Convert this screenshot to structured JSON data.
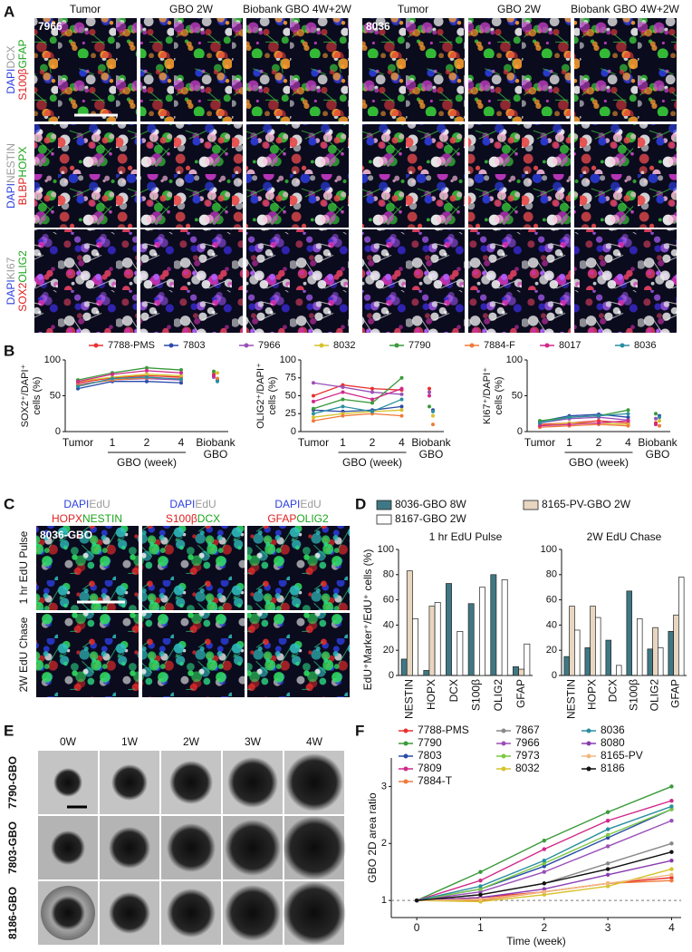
{
  "panels": {
    "A": {
      "label": "A",
      "columns": [
        "Tumor",
        "GBO 2W",
        "Biobank GBO 4W+2W",
        "Tumor",
        "GBO 2W",
        "Biobank GBO 4W+2W"
      ],
      "samples": [
        "7966",
        "8036"
      ],
      "rows": [
        {
          "line1": [
            "DAPI",
            "DCX"
          ],
          "line2": [
            "S100β",
            "GFAP"
          ]
        },
        {
          "line1": [
            "DAPI",
            "NESTIN"
          ],
          "line2": [
            "BLBP",
            "HOPX"
          ]
        },
        {
          "line1": [
            "DAPI",
            "KI67"
          ],
          "line2": [
            "SOX2",
            "OLIG2"
          ]
        }
      ]
    },
    "B": {
      "label": "B"
    },
    "C": {
      "label": "C",
      "columns": [
        {
          "line1": [
            "DAPI",
            "EdU"
          ],
          "line2": [
            "HOPX",
            "NESTIN"
          ]
        },
        {
          "line1": [
            "DAPI",
            "EdU"
          ],
          "line2": [
            "S100β",
            "DCX"
          ]
        },
        {
          "line1": [
            "DAPI",
            "EdU"
          ],
          "line2": [
            "GFAP",
            "OLIG2"
          ]
        }
      ],
      "sample": "8036-GBO",
      "rows": [
        "1 hr EdU Pulse",
        "2W EdU Chase"
      ]
    },
    "D": {
      "label": "D"
    },
    "E": {
      "label": "E",
      "columns": [
        "0W",
        "1W",
        "2W",
        "3W",
        "4W"
      ],
      "rows": [
        "7790-GBO",
        "7803-GBO",
        "8186-GBO"
      ]
    },
    "F": {
      "label": "F"
    }
  },
  "chart_data": [
    {
      "type": "line",
      "ylabel": [
        "SOX2⁺/DAPI⁺",
        "cells (%)"
      ],
      "xlabel": "GBO (week)",
      "categories": [
        "Tumor",
        "1",
        "2",
        "4",
        "Biobank GBO"
      ],
      "ylim": [
        0,
        100
      ],
      "yticks": [
        0,
        50,
        100
      ],
      "series": [
        {
          "name": "7788-PMS",
          "color": "#e8312f",
          "values": [
            68,
            75,
            78,
            76,
            80
          ]
        },
        {
          "name": "7803",
          "color": "#2b4ba8",
          "values": [
            60,
            70,
            70,
            68,
            72
          ]
        },
        {
          "name": "7966",
          "color": "#9b4fb8",
          "values": [
            66,
            72,
            74,
            72,
            76
          ]
        },
        {
          "name": "8032",
          "color": "#d6c22b",
          "values": [
            70,
            76,
            80,
            78,
            82
          ]
        },
        {
          "name": "7790",
          "color": "#3a9a3a",
          "values": [
            72,
            82,
            89,
            86,
            84
          ]
        },
        {
          "name": "7884-F",
          "color": "#f07a3a",
          "values": [
            65,
            72,
            75,
            74,
            74
          ]
        },
        {
          "name": "8017",
          "color": "#d0298a",
          "values": [
            70,
            80,
            85,
            82,
            78
          ]
        },
        {
          "name": "8036",
          "color": "#2a8fa0",
          "values": [
            63,
            74,
            76,
            73,
            70
          ]
        }
      ]
    },
    {
      "type": "line",
      "ylabel": [
        "OLIG2⁺/DAPI⁺",
        "cells (%)"
      ],
      "xlabel": "GBO (week)",
      "categories": [
        "Tumor",
        "1",
        "2",
        "4",
        "Biobank GBO"
      ],
      "ylim": [
        0,
        100
      ],
      "yticks": [
        0,
        25,
        50,
        75,
        100
      ],
      "series": [
        {
          "name": "7788-PMS",
          "color": "#e8312f",
          "values": [
            50,
            65,
            60,
            58,
            60
          ]
        },
        {
          "name": "7803",
          "color": "#2b4ba8",
          "values": [
            30,
            28,
            30,
            35,
            30
          ]
        },
        {
          "name": "7966",
          "color": "#9b4fb8",
          "values": [
            68,
            62,
            55,
            52,
            55
          ]
        },
        {
          "name": "8032",
          "color": "#d6c22b",
          "values": [
            20,
            25,
            28,
            30,
            22
          ]
        },
        {
          "name": "7790",
          "color": "#3a9a3a",
          "values": [
            32,
            45,
            40,
            75,
            35
          ]
        },
        {
          "name": "7884-F",
          "color": "#f07a3a",
          "values": [
            15,
            22,
            25,
            22,
            10
          ]
        },
        {
          "name": "8017",
          "color": "#d0298a",
          "values": [
            42,
            55,
            45,
            60,
            50
          ]
        },
        {
          "name": "8036",
          "color": "#2a8fa0",
          "values": [
            25,
            35,
            28,
            45,
            28
          ]
        }
      ]
    },
    {
      "type": "line",
      "ylabel": [
        "KI67⁺/DAPI⁺",
        "cells (%)"
      ],
      "xlabel": "GBO (week)",
      "categories": [
        "Tumor",
        "1",
        "2",
        "4",
        "Biobank GBO"
      ],
      "ylim": [
        0,
        100
      ],
      "yticks": [
        0,
        50,
        100
      ],
      "series": [
        {
          "name": "7788-PMS",
          "color": "#e8312f",
          "values": [
            10,
            12,
            15,
            12,
            12
          ]
        },
        {
          "name": "7803",
          "color": "#2b4ba8",
          "values": [
            14,
            22,
            24,
            20,
            22
          ]
        },
        {
          "name": "7966",
          "color": "#9b4fb8",
          "values": [
            12,
            18,
            20,
            16,
            18
          ]
        },
        {
          "name": "8032",
          "color": "#d6c22b",
          "values": [
            8,
            12,
            12,
            10,
            15
          ]
        },
        {
          "name": "7790",
          "color": "#3a9a3a",
          "values": [
            15,
            20,
            22,
            30,
            25
          ]
        },
        {
          "name": "7884-F",
          "color": "#f07a3a",
          "values": [
            6,
            8,
            10,
            8,
            8
          ]
        },
        {
          "name": "8017",
          "color": "#d0298a",
          "values": [
            8,
            10,
            12,
            15,
            10
          ]
        },
        {
          "name": "8036",
          "color": "#2a8fa0",
          "values": [
            12,
            20,
            22,
            25,
            20
          ]
        }
      ]
    },
    {
      "type": "bar",
      "title": "1 hr EdU Pulse",
      "ylabel": "EdU⁺Marker⁺/EdU⁺ cells (%)",
      "categories": [
        "NESTIN",
        "HOPX",
        "DCX",
        "S100β",
        "OLIG2",
        "GFAP"
      ],
      "ylim": [
        0,
        100
      ],
      "yticks": [
        0,
        20,
        40,
        60,
        80,
        100
      ],
      "series": [
        {
          "name": "8036-GBO 8W",
          "color": "#3f7884",
          "values": [
            13,
            4,
            73,
            57,
            80,
            7
          ]
        },
        {
          "name": "8165-PV-GBO 2W",
          "color": "#e8d6c0",
          "values": [
            83,
            55,
            null,
            null,
            null,
            5
          ]
        },
        {
          "name": "8167-GBO 2W",
          "color": "#ffffff",
          "values": [
            45,
            58,
            35,
            70,
            76,
            25
          ]
        }
      ]
    },
    {
      "type": "bar",
      "title": "2W EdU Chase",
      "categories": [
        "NESTIN",
        "HOPX",
        "DCX",
        "S100β",
        "OLIG2",
        "GFAP"
      ],
      "ylim": [
        0,
        100
      ],
      "yticks": [
        0,
        20,
        40,
        60,
        80,
        100
      ],
      "series": [
        {
          "name": "8036-GBO 8W",
          "color": "#3f7884",
          "values": [
            15,
            22,
            28,
            67,
            21,
            35
          ]
        },
        {
          "name": "8165-PV-GBO 2W",
          "color": "#e8d6c0",
          "values": [
            55,
            55,
            null,
            null,
            38,
            48
          ]
        },
        {
          "name": "8167-GBO 2W",
          "color": "#ffffff",
          "values": [
            36,
            46,
            8,
            45,
            22,
            78
          ]
        }
      ]
    },
    {
      "type": "xyline",
      "ylabel": "GBO 2D area ratio",
      "xlabel": "Time (week)",
      "x": [
        0,
        1,
        2,
        3,
        4
      ],
      "xlim": [
        -0.4,
        4.15
      ],
      "xticks": [
        0,
        1,
        2,
        3,
        4
      ],
      "ylim": [
        0.7,
        3.5
      ],
      "yticks": [
        1,
        2,
        3
      ],
      "hline": 1,
      "series": [
        {
          "name": "7788-PMS",
          "color": "#e8312f",
          "values": [
            1,
            1.05,
            1.15,
            1.3,
            1.4
          ]
        },
        {
          "name": "7790",
          "color": "#3a9a3a",
          "values": [
            1,
            1.5,
            2.05,
            2.55,
            3.0
          ]
        },
        {
          "name": "7803",
          "color": "#2b4ba8",
          "values": [
            1,
            1.2,
            1.6,
            2.1,
            2.6
          ]
        },
        {
          "name": "7809",
          "color": "#d0298a",
          "values": [
            1,
            1.35,
            1.9,
            2.4,
            2.75
          ]
        },
        {
          "name": "7884-T",
          "color": "#f07a3a",
          "values": [
            1,
            1.0,
            1.15,
            1.3,
            1.35
          ]
        },
        {
          "name": "7867",
          "color": "#888888",
          "values": [
            1,
            1.1,
            1.3,
            1.65,
            2.0
          ]
        },
        {
          "name": "7966",
          "color": "#9b4fb8",
          "values": [
            1,
            1.15,
            1.5,
            1.95,
            2.4
          ]
        },
        {
          "name": "7973",
          "color": "#7ac943",
          "values": [
            1,
            1.2,
            1.65,
            2.15,
            2.6
          ]
        },
        {
          "name": "8032",
          "color": "#d6c22b",
          "values": [
            1,
            0.98,
            1.1,
            1.25,
            1.55
          ]
        },
        {
          "name": "8036",
          "color": "#2a8fa0",
          "values": [
            1,
            1.25,
            1.7,
            2.25,
            2.65
          ]
        },
        {
          "name": "8080",
          "color": "#8a3ab0",
          "values": [
            1,
            1.05,
            1.2,
            1.45,
            1.7
          ]
        },
        {
          "name": "8165-PV",
          "color": "#f0b880",
          "values": [
            1,
            1.02,
            1.15,
            1.3,
            1.45
          ]
        },
        {
          "name": "8186",
          "color": "#111111",
          "values": [
            1,
            1.1,
            1.3,
            1.55,
            1.85
          ]
        }
      ]
    }
  ]
}
